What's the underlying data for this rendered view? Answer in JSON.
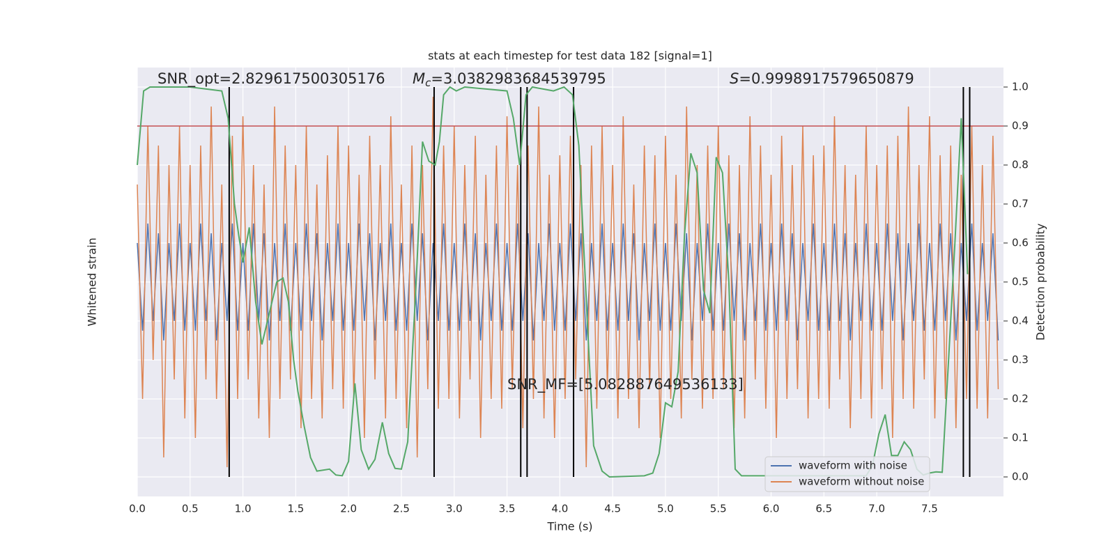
{
  "chart_data": {
    "type": "line",
    "title": "stats at each timestep for test data 182 [signal=1]",
    "x_label": "Time (s)",
    "y_label": "Whitened strain",
    "y2_label": "Detection probability",
    "xlim": [
      0,
      8.2
    ],
    "xticks": [
      0.0,
      0.5,
      1.0,
      1.5,
      2.0,
      2.5,
      3.0,
      3.5,
      4.0,
      4.5,
      5.0,
      5.5,
      6.0,
      6.5,
      7.0,
      7.5
    ],
    "ylim": [
      -1.1,
      1.1
    ],
    "y2lim": [
      -0.05,
      1.05
    ],
    "y2ticks": [
      0.0,
      0.1,
      0.2,
      0.3,
      0.4,
      0.5,
      0.6,
      0.7,
      0.8,
      0.9,
      1.0
    ],
    "grid": true,
    "legend": "lower right",
    "x": [
      0,
      0.05,
      0.1,
      0.15,
      0.2,
      0.25,
      0.3,
      0.35,
      0.4,
      0.45,
      0.5,
      0.55,
      0.6,
      0.65,
      0.7,
      0.75,
      0.8,
      0.85,
      0.9,
      0.95,
      1,
      1.05,
      1.1,
      1.15,
      1.2,
      1.25,
      1.3,
      1.35,
      1.4,
      1.45,
      1.5,
      1.55,
      1.6,
      1.65,
      1.7,
      1.75,
      1.8,
      1.85,
      1.9,
      1.95,
      2,
      2.05,
      2.1,
      2.15,
      2.2,
      2.25,
      2.3,
      2.35,
      2.4,
      2.45,
      2.5,
      2.55,
      2.6,
      2.65,
      2.7,
      2.75,
      2.8,
      2.85,
      2.9,
      2.95,
      3,
      3.05,
      3.1,
      3.15,
      3.2,
      3.25,
      3.3,
      3.35,
      3.4,
      3.45,
      3.5,
      3.55,
      3.6,
      3.65,
      3.7,
      3.75,
      3.8,
      3.85,
      3.9,
      3.95,
      4,
      4.05,
      4.1,
      4.15,
      4.2,
      4.25,
      4.3,
      4.35,
      4.4,
      4.45,
      4.5,
      4.55,
      4.6,
      4.65,
      4.7,
      4.75,
      4.8,
      4.85,
      4.9,
      4.95,
      5,
      5.05,
      5.1,
      5.15,
      5.2,
      5.25,
      5.3,
      5.35,
      5.4,
      5.45,
      5.5,
      5.55,
      5.6,
      5.65,
      5.7,
      5.75,
      5.8,
      5.85,
      5.9,
      5.95,
      6,
      6.05,
      6.1,
      6.15,
      6.2,
      6.25,
      6.3,
      6.35,
      6.4,
      6.45,
      6.5,
      6.55,
      6.6,
      6.65,
      6.7,
      6.75,
      6.8,
      6.85,
      6.9,
      6.95,
      7,
      7.05,
      7.1,
      7.15,
      7.2,
      7.25,
      7.3,
      7.35,
      7.4,
      7.45,
      7.5,
      7.55,
      7.6,
      7.65,
      7.7,
      7.75,
      7.8,
      7.85,
      7.9,
      7.95,
      8,
      8.05,
      8.1,
      8.15
    ],
    "series": [
      {
        "name": "waveform with noise",
        "color": "#4c72b0",
        "values": [
          0.2,
          -0.25,
          0.3,
          -0.2,
          0.25,
          -0.3,
          0.2,
          -0.2,
          0.3,
          -0.25,
          0.2,
          -0.25,
          0.3,
          -0.2,
          0.25,
          -0.3,
          0.2,
          -0.2,
          0.3,
          -0.25,
          0.2,
          -0.25,
          0.3,
          -0.2,
          0.25,
          -0.3,
          0.2,
          -0.2,
          0.3,
          -0.25,
          0.2,
          -0.25,
          0.3,
          -0.2,
          0.25,
          -0.3,
          0.2,
          -0.2,
          0.3,
          -0.25,
          0.2,
          -0.25,
          0.3,
          -0.2,
          0.25,
          -0.3,
          0.2,
          -0.2,
          0.3,
          -0.25,
          0.2,
          -0.25,
          0.3,
          -0.2,
          0.25,
          -0.3,
          0.2,
          -0.2,
          0.3,
          -0.25,
          0.2,
          -0.25,
          0.3,
          -0.2,
          0.25,
          -0.3,
          0.2,
          -0.2,
          0.3,
          -0.25,
          0.2,
          -0.25,
          0.3,
          -0.2,
          0.25,
          -0.3,
          0.2,
          -0.2,
          0.3,
          -0.25,
          0.2,
          -0.25,
          0.3,
          -0.2,
          0.25,
          -0.3,
          0.2,
          -0.2,
          0.3,
          -0.25,
          0.2,
          -0.25,
          0.3,
          -0.2,
          0.25,
          -0.3,
          0.2,
          -0.2,
          0.3,
          -0.25,
          0.2,
          -0.25,
          0.3,
          -0.2,
          0.25,
          -0.3,
          0.2,
          -0.2,
          0.3,
          -0.25,
          0.2,
          -0.25,
          0.3,
          -0.2,
          0.25,
          -0.3,
          0.2,
          -0.2,
          0.3,
          -0.25,
          0.2,
          -0.25,
          0.3,
          -0.2,
          0.25,
          -0.3,
          0.2,
          -0.2,
          0.3,
          -0.25,
          0.2,
          -0.25,
          0.3,
          -0.2,
          0.25,
          -0.3,
          0.2,
          -0.2,
          0.3,
          -0.25,
          0.2,
          -0.25,
          0.3,
          -0.2,
          0.25,
          -0.3,
          0.2,
          -0.2,
          0.3,
          -0.25,
          0.2,
          -0.25,
          0.3,
          -0.2,
          0.25,
          -0.3,
          0.2,
          -0.2,
          0.3,
          -0.25,
          0.2,
          -0.2,
          0.25,
          -0.3
        ]
      },
      {
        "name": "waveform without noise",
        "color": "#dd8452",
        "values": [
          0.5,
          -0.6,
          0.8,
          -0.4,
          0.7,
          -0.9,
          0.6,
          -0.5,
          0.8,
          -0.7,
          0.6,
          -0.8,
          0.7,
          -0.5,
          0.9,
          -0.6,
          0.5,
          -0.95,
          0.75,
          -0.6,
          0.85,
          -0.5,
          0.6,
          -0.7,
          0.5,
          -0.8,
          0.9,
          -0.6,
          0.7,
          -0.5,
          0.6,
          -0.75,
          0.8,
          -0.6,
          0.5,
          -0.7,
          0.65,
          -0.55,
          0.8,
          -0.65,
          0.7,
          -0.6,
          0.55,
          -0.8,
          0.75,
          -0.5,
          0.6,
          -0.7,
          0.85,
          -0.6,
          0.5,
          -0.75,
          0.7,
          -0.9,
          0.6,
          -0.55,
          0.95,
          -0.65,
          0.7,
          -0.6,
          0.8,
          -0.7,
          0.6,
          -0.5,
          0.75,
          -0.8,
          0.55,
          -0.6,
          0.7,
          -0.65,
          0.85,
          -0.55,
          0.6,
          -0.75,
          0.7,
          -0.6,
          0.9,
          -0.7,
          0.55,
          -0.8,
          0.65,
          -0.6,
          0.75,
          -0.5,
          0.6,
          -0.95,
          0.7,
          -0.65,
          0.8,
          -0.55,
          0.6,
          -0.7,
          0.85,
          -0.6,
          0.5,
          -0.75,
          0.7,
          -0.55,
          0.65,
          -0.8,
          0.75,
          -0.6,
          0.55,
          -0.7,
          0.9,
          -0.5,
          0.6,
          -0.65,
          0.7,
          -0.6,
          0.8,
          -0.55,
          0.65,
          -0.75,
          0.6,
          -0.7,
          0.85,
          -0.5,
          0.7,
          -0.65,
          0.55,
          -0.8,
          0.75,
          -0.6,
          0.6,
          -0.55,
          0.8,
          -0.7,
          0.65,
          -0.6,
          0.7,
          -0.65,
          0.85,
          -0.5,
          0.6,
          -0.75,
          0.55,
          -0.6,
          0.8,
          -0.7,
          0.6,
          -0.55,
          0.7,
          -0.8,
          0.75,
          -0.6,
          0.9,
          -0.65,
          0.6,
          -0.5,
          0.85,
          -0.7,
          0.65,
          -0.6,
          0.7,
          -0.75,
          0.55,
          -0.6,
          0.8,
          -0.65,
          0.6,
          -0.7,
          0.75,
          -0.55
        ]
      }
    ],
    "probability": {
      "color": "#55a868",
      "axis": "y2",
      "x": [
        0,
        0.06,
        0.12,
        0.5,
        0.8,
        0.86,
        0.92,
        0.96,
        1.0,
        1.06,
        1.12,
        1.18,
        1.25,
        1.32,
        1.38,
        1.43,
        1.48,
        1.52,
        1.58,
        1.64,
        1.7,
        1.82,
        1.88,
        1.94,
        2.0,
        2.06,
        2.12,
        2.19,
        2.25,
        2.32,
        2.38,
        2.44,
        2.5,
        2.56,
        2.64,
        2.7,
        2.76,
        2.82,
        2.86,
        2.9,
        2.96,
        3.02,
        3.1,
        3.5,
        3.56,
        3.62,
        3.68,
        3.74,
        3.94,
        4.04,
        4.12,
        4.18,
        4.26,
        4.32,
        4.4,
        4.47,
        4.8,
        4.88,
        4.94,
        5.0,
        5.06,
        5.12,
        5.18,
        5.24,
        5.3,
        5.36,
        5.42,
        5.48,
        5.54,
        5.6,
        5.66,
        5.72,
        6.9,
        6.96,
        7.02,
        7.08,
        7.14,
        7.2,
        7.26,
        7.32,
        7.38,
        7.44,
        7.5,
        7.56,
        7.62,
        7.68,
        7.74,
        7.8,
        7.86
      ],
      "values": [
        0.8,
        0.99,
        1.0,
        1.0,
        0.99,
        0.92,
        0.7,
        0.62,
        0.55,
        0.64,
        0.45,
        0.34,
        0.42,
        0.5,
        0.51,
        0.45,
        0.3,
        0.22,
        0.13,
        0.05,
        0.015,
        0.02,
        0.005,
        0.003,
        0.04,
        0.24,
        0.07,
        0.02,
        0.045,
        0.14,
        0.06,
        0.022,
        0.02,
        0.09,
        0.5,
        0.86,
        0.81,
        0.8,
        0.86,
        0.98,
        1.0,
        0.99,
        1.0,
        0.99,
        0.92,
        0.8,
        0.98,
        1.0,
        0.99,
        1.0,
        0.98,
        0.85,
        0.4,
        0.08,
        0.015,
        0.0,
        0.003,
        0.01,
        0.06,
        0.19,
        0.18,
        0.27,
        0.62,
        0.83,
        0.78,
        0.48,
        0.42,
        0.82,
        0.78,
        0.5,
        0.02,
        0.003,
        0.003,
        0.03,
        0.11,
        0.16,
        0.055,
        0.055,
        0.09,
        0.07,
        0.02,
        0.005,
        0.01,
        0.013,
        0.012,
        0.3,
        0.6,
        0.92,
        0.52
      ]
    },
    "threshold": 0.9,
    "threshold_color": "#c44e52",
    "vlines": [
      0.87,
      2.81,
      3.63,
      3.69,
      4.13,
      7.82,
      7.88
    ],
    "annotations": [
      "SNR_opt=2.829617500305176",
      {
        "symbol": "M",
        "sub": "c",
        "text": "=3.0382983684539795"
      },
      {
        "symbol": "S",
        "text": "=0.9998917579650879"
      },
      "SNR_MF=[5.082887649536133]"
    ]
  }
}
